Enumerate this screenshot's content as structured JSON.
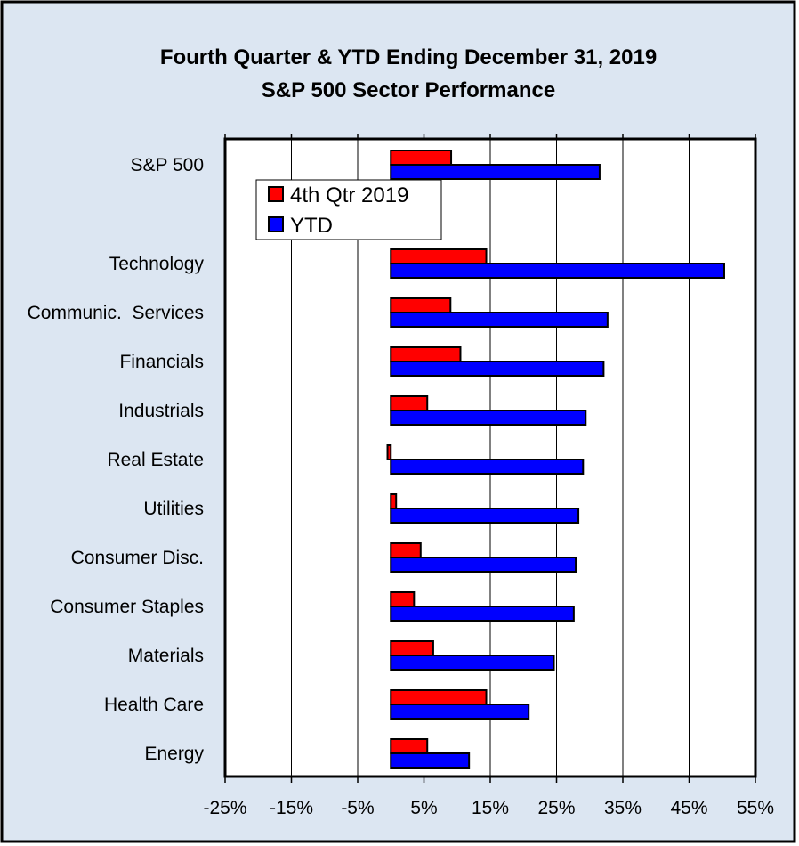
{
  "chart_data": {
    "type": "bar",
    "orientation": "horizontal",
    "title": "Fourth Quarter & YTD Ending December 31, 2019",
    "subtitle": "S&P 500 Sector Performance",
    "categories": [
      "S&P 500",
      "Technology",
      "Communic.  Services",
      "Financials",
      "Industrials",
      "Real Estate",
      "Utilities",
      "Consumer Disc.",
      "Consumer Staples",
      "Materials",
      "Health Care",
      "Energy"
    ],
    "series": [
      {
        "name": "4th Qtr 2019",
        "color": "#ff0000",
        "values": [
          9.1,
          14.4,
          9.0,
          10.5,
          5.5,
          -0.5,
          0.8,
          4.5,
          3.5,
          6.4,
          14.4,
          5.5
        ]
      },
      {
        "name": "YTD",
        "color": "#0000ff",
        "values": [
          31.5,
          50.3,
          32.7,
          32.1,
          29.4,
          29.0,
          28.3,
          27.9,
          27.6,
          24.6,
          20.8,
          11.8
        ]
      }
    ],
    "xlim": [
      -25,
      55
    ],
    "xticks": [
      "-25%",
      "-15%",
      "-5%",
      "5%",
      "15%",
      "25%",
      "35%",
      "45%",
      "55%"
    ],
    "xtick_values": [
      -25,
      -15,
      -5,
      5,
      15,
      25,
      35,
      45,
      55
    ],
    "grid": true,
    "legend": "top-left"
  }
}
